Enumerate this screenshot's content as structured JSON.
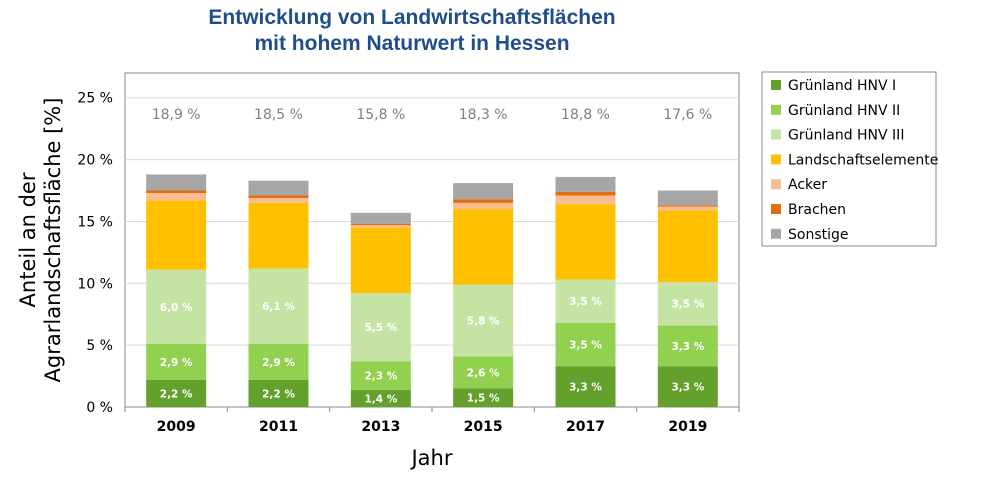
{
  "chart_data": {
    "type": "bar",
    "stacked": true,
    "title_lines": [
      "Entwicklung von Landwirtschaftsflächen",
      "mit hohem Naturwert  in Hessen"
    ],
    "xlabel": "Jahr",
    "ylabel_lines": [
      "Anteil an der",
      "Agrarlandschaftsfläche [%]"
    ],
    "ylim": [
      0,
      27
    ],
    "yticks": [
      {
        "value": 0,
        "label": "0 %"
      },
      {
        "value": 5,
        "label": "5 %"
      },
      {
        "value": 10,
        "label": "10 %"
      },
      {
        "value": 15,
        "label": "15 %"
      },
      {
        "value": 20,
        "label": "20 %"
      },
      {
        "value": 25,
        "label": "25 %"
      }
    ],
    "grid": true,
    "legend_position": "right",
    "categories": [
      "2009",
      "2011",
      "2013",
      "2015",
      "2017",
      "2019"
    ],
    "totals": [
      "18,9 %",
      "18,5 %",
      "15,8 %",
      "18,3 %",
      "18,8 %",
      "17,6 %"
    ],
    "series": [
      {
        "name": "Grünland HNV I",
        "color": "#63a02c",
        "values": [
          2.2,
          2.2,
          1.4,
          1.5,
          3.3,
          3.3
        ],
        "labels": [
          "2,2 %",
          "2,2 %",
          "1,4 %",
          "1,5 %",
          "3,3 %",
          "3,3 %"
        ]
      },
      {
        "name": "Grünland HNV II",
        "color": "#92d050",
        "values": [
          2.9,
          2.9,
          2.3,
          2.6,
          3.5,
          3.3
        ],
        "labels": [
          "2,9 %",
          "2,9 %",
          "2,3 %",
          "2,6 %",
          "3,5 %",
          "3,3 %"
        ]
      },
      {
        "name": "Grünland HNV III",
        "color": "#c5e3a3",
        "values": [
          6.0,
          6.1,
          5.5,
          5.8,
          3.5,
          3.5
        ],
        "labels": [
          "6,0 %",
          "6,1 %",
          "5,5 %",
          "5,8 %",
          "3,5 %",
          "3,5 %"
        ]
      },
      {
        "name": "Landschaftselemente",
        "color": "#ffc000",
        "values": [
          5.6,
          5.3,
          5.3,
          6.1,
          6.1,
          5.8
        ]
      },
      {
        "name": "Acker",
        "color": "#f8be91",
        "values": [
          0.6,
          0.4,
          0.2,
          0.5,
          0.7,
          0.3
        ]
      },
      {
        "name": "Brachen",
        "color": "#e46c0a",
        "values": [
          0.2,
          0.2,
          0.1,
          0.3,
          0.3,
          0.1
        ]
      },
      {
        "name": "Sonstige",
        "color": "#a6a6a6",
        "values": [
          1.3,
          1.2,
          0.9,
          1.3,
          1.2,
          1.2
        ]
      }
    ]
  }
}
